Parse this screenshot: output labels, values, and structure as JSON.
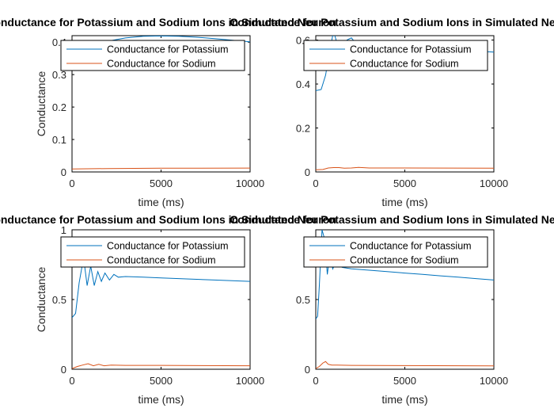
{
  "chart_data": [
    {
      "type": "line",
      "title": "Conductance for Potassium and Sodium Ions in Simulated Neuron",
      "xlabel": "time (ms)",
      "ylabel": "Conductance",
      "xlim": [
        0,
        10000
      ],
      "ylim": [
        0,
        0.42
      ],
      "xticks": [
        0,
        5000,
        10000
      ],
      "xtick_labels": [
        "0",
        "5000",
        "10000"
      ],
      "yticks": [
        0,
        0.1,
        0.2,
        0.3,
        0.4
      ],
      "ytick_labels": [
        "0",
        "0.1",
        "0.2",
        "0.3",
        "0.4"
      ],
      "legend": "top",
      "grid": false,
      "series": [
        {
          "name": "Conductance for Potassium",
          "color": "#0072BD",
          "x": [
            0,
            200,
            600,
            1000,
            1500,
            2000,
            3000,
            4000,
            5000,
            6000,
            7000,
            8000,
            9000,
            10000
          ],
          "y": [
            0.34,
            0.355,
            0.375,
            0.385,
            0.395,
            0.403,
            0.413,
            0.418,
            0.419,
            0.418,
            0.415,
            0.411,
            0.406,
            0.401
          ]
        },
        {
          "name": "Conductance for Sodium",
          "color": "#D95319",
          "x": [
            0,
            2000,
            5000,
            10000
          ],
          "y": [
            0.009,
            0.0105,
            0.0115,
            0.012
          ]
        }
      ]
    },
    {
      "type": "line",
      "title": "Conductance for Potassium and Sodium Ions in Simulated Neuron",
      "xlabel": "time (ms)",
      "ylabel": "",
      "xlim": [
        0,
        10000
      ],
      "ylim": [
        0,
        0.62
      ],
      "xticks": [
        0,
        5000,
        10000
      ],
      "xtick_labels": [
        "0",
        "5000",
        "10000"
      ],
      "yticks": [
        0,
        0.2,
        0.4,
        0.6
      ],
      "ytick_labels": [
        "0",
        "0.2",
        "0.4",
        "0.6"
      ],
      "legend": "top",
      "grid": false,
      "series": [
        {
          "name": "Conductance for Potassium",
          "color": "#0072BD",
          "x": [
            0,
            300,
            550,
            800,
            1000,
            1250,
            1500,
            1750,
            2000,
            2250,
            2500,
            3000,
            4000,
            5000,
            6000,
            7000,
            8000,
            9000,
            10000
          ],
          "y": [
            0.37,
            0.375,
            0.44,
            0.56,
            0.64,
            0.57,
            0.55,
            0.6,
            0.61,
            0.585,
            0.58,
            0.58,
            0.575,
            0.57,
            0.565,
            0.56,
            0.555,
            0.55,
            0.545
          ]
        },
        {
          "name": "Conductance for Sodium",
          "color": "#D95319",
          "x": [
            0,
            400,
            700,
            1000,
            1300,
            1600,
            2000,
            2400,
            3000,
            5000,
            10000
          ],
          "y": [
            0.01,
            0.011,
            0.018,
            0.02,
            0.02,
            0.017,
            0.018,
            0.021,
            0.018,
            0.018,
            0.017
          ]
        }
      ]
    },
    {
      "type": "line",
      "title": "Conductance for Potassium and Sodium Ions in Simulated Neuron",
      "xlabel": "time (ms)",
      "ylabel": "Conductance",
      "xlim": [
        0,
        10000
      ],
      "ylim": [
        0,
        1
      ],
      "xticks": [
        0,
        5000,
        10000
      ],
      "xtick_labels": [
        "0",
        "5000",
        "10000"
      ],
      "yticks": [
        0,
        0.5,
        1
      ],
      "ytick_labels": [
        "0",
        "0.5",
        "1"
      ],
      "legend": "top",
      "grid": false,
      "series": [
        {
          "name": "Conductance for Potassium",
          "color": "#0072BD",
          "x": [
            0,
            200,
            400,
            650,
            850,
            1050,
            1250,
            1450,
            1650,
            1850,
            2100,
            2350,
            2600,
            3000,
            4000,
            5000,
            6000,
            7000,
            8000,
            9000,
            10000
          ],
          "y": [
            0.37,
            0.4,
            0.62,
            0.8,
            0.6,
            0.74,
            0.6,
            0.7,
            0.63,
            0.69,
            0.64,
            0.68,
            0.66,
            0.665,
            0.66,
            0.655,
            0.65,
            0.645,
            0.64,
            0.635,
            0.63
          ]
        },
        {
          "name": "Conductance for Sodium",
          "color": "#D95319",
          "x": [
            0,
            300,
            600,
            900,
            1200,
            1500,
            1800,
            2200,
            3000,
            5000,
            10000
          ],
          "y": [
            0.005,
            0.02,
            0.03,
            0.04,
            0.025,
            0.035,
            0.025,
            0.03,
            0.028,
            0.028,
            0.025
          ]
        }
      ]
    },
    {
      "type": "line",
      "title": "Conductance for Potassium and Sodium Ions in Simulated Neuron",
      "xlabel": "time (ms)",
      "ylabel": "",
      "xlim": [
        0,
        10000
      ],
      "ylim": [
        0,
        1
      ],
      "xticks": [
        0,
        5000,
        10000
      ],
      "xtick_labels": [
        "0",
        "5000",
        "10000"
      ],
      "yticks": [
        0,
        0.5
      ],
      "ytick_labels": [
        "0",
        "0.5"
      ],
      "legend": "top",
      "grid": false,
      "series": [
        {
          "name": "Conductance for Potassium",
          "color": "#0072BD",
          "x": [
            0,
            100,
            200,
            350,
            500,
            650,
            800,
            950,
            1100,
            1300,
            1500,
            2000,
            3000,
            4000,
            5000,
            6000,
            7000,
            8000,
            9000,
            10000
          ],
          "y": [
            0.36,
            0.38,
            0.6,
            1.0,
            0.93,
            0.68,
            0.84,
            0.72,
            0.76,
            0.74,
            0.73,
            0.72,
            0.71,
            0.7,
            0.69,
            0.68,
            0.67,
            0.66,
            0.65,
            0.64
          ]
        },
        {
          "name": "Conductance for Sodium",
          "color": "#D95319",
          "x": [
            0,
            200,
            400,
            550,
            700,
            900,
            1200,
            2000,
            5000,
            10000
          ],
          "y": [
            0.005,
            0.02,
            0.045,
            0.055,
            0.035,
            0.03,
            0.03,
            0.028,
            0.026,
            0.024
          ]
        }
      ]
    }
  ]
}
